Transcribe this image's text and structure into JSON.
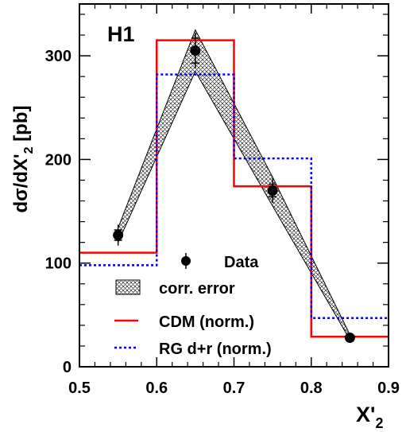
{
  "chart_data": {
    "type": "line",
    "experiment_label": "H1",
    "xlabel": "X'",
    "xlabel_sub": "2",
    "ylabel": "dσ/dX'",
    "ylabel_sub": "2",
    "ylabel_unit": "[pb]",
    "xlim": [
      0.5,
      0.9
    ],
    "ylim": [
      0,
      350
    ],
    "xticks": [
      0.5,
      0.6,
      0.7,
      0.8,
      0.9
    ],
    "xtick_labels": [
      "0.5",
      "0.6",
      "0.7",
      "0.8",
      "0.9"
    ],
    "yticks": [
      0,
      100,
      200,
      300
    ],
    "ytick_labels": [
      "0",
      "100",
      "200",
      "300"
    ],
    "grid": false,
    "legend_position": "bottom-right",
    "data": {
      "name": "Data",
      "x": [
        0.55,
        0.65,
        0.75,
        0.85
      ],
      "y": [
        127,
        305,
        170,
        28
      ],
      "err_stat": [
        5,
        12,
        6,
        2
      ],
      "err_tot": [
        10,
        17,
        12,
        3
      ]
    },
    "corr_error": {
      "name": "corr. error",
      "x": [
        0.55,
        0.65,
        0.75,
        0.85
      ],
      "lower": [
        120,
        285,
        155,
        26
      ],
      "upper": [
        134,
        325,
        183,
        31
      ]
    },
    "series": [
      {
        "name": "CDM (norm.)",
        "style": "solid",
        "color": "#ff0000",
        "bin_edges": [
          0.5,
          0.6,
          0.7,
          0.8,
          0.9
        ],
        "values": [
          110,
          315,
          174,
          29
        ]
      },
      {
        "name": "RG d+r (norm.)",
        "style": "dotted",
        "color": "#0000ff",
        "bin_edges": [
          0.5,
          0.6,
          0.7,
          0.8,
          0.9
        ],
        "values": [
          98,
          282,
          201,
          47
        ]
      }
    ],
    "legend": [
      {
        "label": "Data",
        "marker": "point"
      },
      {
        "label": "corr. error",
        "marker": "hatch"
      },
      {
        "label": "CDM (norm.)",
        "marker": "line-red"
      },
      {
        "label": "RG d+r (norm.)",
        "marker": "line-blue-dotted"
      }
    ]
  }
}
